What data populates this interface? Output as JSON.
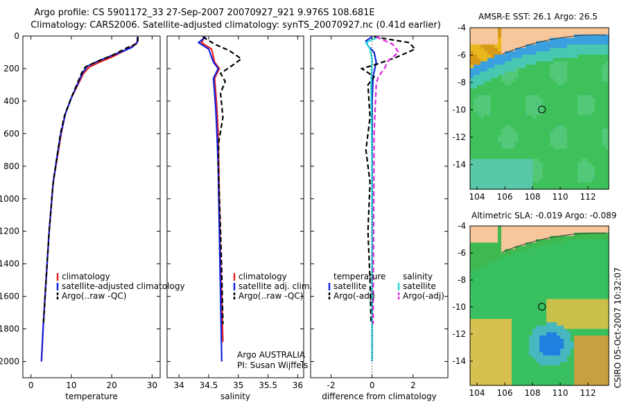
{
  "title_line1": "Argo profile: CS 5901172_33 27-Sep-2007 20070927_921 9.976S 108.681E",
  "title_line2": "Climatology: CARS2006. Satellite-adjusted climatology: synTS_20070927.nc (0.41d earlier)",
  "stamp": "CSIRO 05-Oct-2007 10:32:07",
  "colors": {
    "climatology": "#e02020",
    "satellite": "#1020e0",
    "argo": "#000000",
    "cyan": "#20d8d8",
    "magenta": "#e020e0"
  },
  "chart_data": [
    {
      "type": "line",
      "panel": "temperature",
      "xlabel": "temperature",
      "ylabel": "",
      "xlim": [
        -2,
        32
      ],
      "ylim": [
        2100,
        0
      ],
      "xticks": [
        0,
        10,
        20,
        30
      ],
      "yticks": [
        0,
        200,
        400,
        600,
        800,
        1000,
        1200,
        1400,
        1600,
        1800,
        2000
      ],
      "legend": [
        "climatology",
        "satellite-adjusted climatology",
        "Argo(..raw -QC)"
      ],
      "series": [
        {
          "name": "climatology",
          "color": "climatology",
          "style": "solid",
          "x": [
            26.4,
            26.3,
            24,
            20,
            17,
            14.5,
            13,
            12,
            10,
            8.5,
            7.5,
            6.5,
            5.5,
            5,
            4.5,
            4,
            3.5,
            3,
            2.6
          ],
          "y": [
            5,
            40,
            80,
            130,
            160,
            190,
            230,
            280,
            380,
            480,
            600,
            750,
            900,
            1050,
            1200,
            1400,
            1600,
            1800,
            2000
          ]
        },
        {
          "name": "satellite-adjusted climatology",
          "color": "satellite",
          "style": "solid",
          "x": [
            26.4,
            26.3,
            25,
            20,
            17,
            14,
            12.8,
            11.8,
            10,
            8.5,
            7.4,
            6.4,
            5.5,
            5,
            4.5,
            4,
            3.5,
            3,
            2.6
          ],
          "y": [
            5,
            40,
            70,
            120,
            150,
            185,
            225,
            280,
            380,
            480,
            600,
            750,
            900,
            1050,
            1200,
            1400,
            1600,
            1800,
            2000
          ]
        },
        {
          "name": "Argo(..raw -QC)",
          "color": "argo",
          "style": "dashed",
          "x": [
            26.5,
            26.4,
            24,
            20,
            16,
            13.5,
            12.5,
            11.5,
            9.8,
            8.3,
            7.3,
            6.4,
            5.5,
            5,
            4.5,
            4,
            3.5,
            3.1
          ],
          "y": [
            5,
            45,
            70,
            120,
            160,
            190,
            230,
            290,
            390,
            490,
            600,
            750,
            900,
            1050,
            1200,
            1400,
            1600,
            1770
          ]
        }
      ]
    },
    {
      "type": "line",
      "panel": "salinity",
      "xlabel": "salinity",
      "xlim": [
        33.8,
        36.1
      ],
      "ylim": [
        2100,
        0
      ],
      "xticks": [
        34,
        34.5,
        35,
        35.5,
        36
      ],
      "legend": [
        "climatology",
        "satellite adj. clim.",
        "Argo(..raw -QC)"
      ],
      "annotation": [
        "Argo AUSTRALIA",
        "PI: Susan Wijffels"
      ],
      "series": [
        {
          "name": "climatology",
          "color": "climatology",
          "style": "solid",
          "x": [
            34.43,
            34.38,
            34.55,
            34.6,
            34.68,
            34.6,
            34.62,
            34.64,
            34.66,
            34.67,
            34.68,
            34.69,
            34.7,
            34.72,
            34.74
          ],
          "y": [
            5,
            40,
            80,
            160,
            200,
            260,
            350,
            450,
            600,
            800,
            1000,
            1200,
            1400,
            1600,
            1880
          ]
        },
        {
          "name": "satellite adj. clim.",
          "color": "satellite",
          "style": "solid",
          "x": [
            34.45,
            34.33,
            34.5,
            34.58,
            34.66,
            34.58,
            34.6,
            34.62,
            34.64,
            34.66,
            34.67,
            34.68,
            34.69,
            34.7,
            34.72
          ],
          "y": [
            5,
            40,
            80,
            160,
            200,
            260,
            350,
            450,
            600,
            800,
            1000,
            1200,
            1400,
            1600,
            2000
          ]
        },
        {
          "name": "Argo(..raw -QC)",
          "color": "argo",
          "style": "dashed",
          "x": [
            34.4,
            34.6,
            34.85,
            35.05,
            34.9,
            34.7,
            34.78,
            34.7,
            34.74,
            34.67,
            34.66,
            34.68,
            34.7,
            34.72,
            34.74
          ],
          "y": [
            5,
            50,
            90,
            140,
            180,
            230,
            280,
            350,
            500,
            650,
            800,
            1000,
            1200,
            1450,
            1770
          ]
        }
      ]
    },
    {
      "type": "line",
      "panel": "difference",
      "xlabel": "difference from climatology",
      "xlim": [
        -3,
        3.7
      ],
      "ylim": [
        2100,
        0
      ],
      "xticks": [
        -2,
        0,
        2
      ],
      "legend_temperature": [
        "temperature",
        "satellite",
        "Argo(-adj)"
      ],
      "legend_salinity": [
        "salinity",
        "satellite",
        "Argo(-adj)"
      ],
      "series": [
        {
          "name": "temperature satellite",
          "color": "satellite",
          "style": "solid",
          "x": [
            0,
            -0.3,
            -0.2,
            0.1,
            0.2,
            0.05,
            0,
            0,
            0
          ],
          "y": [
            5,
            30,
            60,
            100,
            160,
            250,
            400,
            1000,
            2000
          ]
        },
        {
          "name": "temperature Argo(-adj)",
          "color": "argo",
          "style": "dashed",
          "x": [
            0.1,
            1.8,
            2.1,
            1.2,
            0.3,
            -0.5,
            0.1,
            -0.2,
            -0.1,
            -0.3,
            -0.1,
            -0.2,
            -0.1,
            -0.05
          ],
          "y": [
            5,
            40,
            80,
            130,
            170,
            200,
            250,
            300,
            500,
            700,
            900,
            1200,
            1500,
            1770
          ]
        },
        {
          "name": "salinity satellite",
          "color": "cyan",
          "style": "solid",
          "x": [
            0.3,
            -0.3,
            -0.1,
            0,
            -0.05,
            0,
            0
          ],
          "y": [
            5,
            40,
            80,
            150,
            300,
            800,
            2000
          ]
        },
        {
          "name": "salinity Argo(-adj)",
          "color": "magenta",
          "style": "dashed",
          "x": [
            0.2,
            1.0,
            1.3,
            0.8,
            0.6,
            0.3,
            0.2,
            0.1,
            0.05
          ],
          "y": [
            5,
            50,
            100,
            150,
            200,
            250,
            300,
            600,
            1770
          ]
        }
      ]
    },
    {
      "type": "heatmap",
      "panel": "map-sst",
      "title": "AMSR-E SST: 26.1 Argo: 26.5",
      "xticks": [
        104,
        106,
        108,
        110,
        112
      ],
      "yticks": [
        -4,
        -6,
        -8,
        -10,
        -12,
        -14
      ],
      "xlim": [
        103.5,
        113.5
      ],
      "ylim": [
        -15.8,
        -4
      ],
      "marker": [
        108.681,
        -9.976
      ]
    },
    {
      "type": "heatmap",
      "panel": "map-sla",
      "title": "Altimetric SLA: -0.019 Argo: -0.089",
      "xticks": [
        104,
        106,
        108,
        110,
        112
      ],
      "yticks": [
        -4,
        -6,
        -8,
        -10,
        -12,
        -14
      ],
      "xlim": [
        103.5,
        113.5
      ],
      "ylim": [
        -15.8,
        -4
      ],
      "marker": [
        108.681,
        -9.976
      ]
    }
  ]
}
